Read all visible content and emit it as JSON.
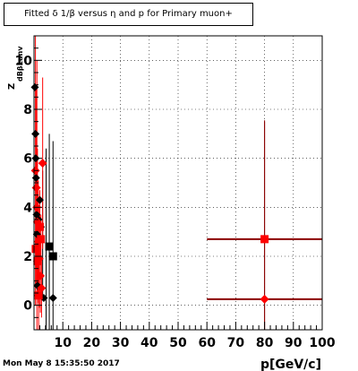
{
  "title": "Fitted δ 1/β versus η and p for Primary muon+",
  "timestamp": "Mon May  8 15:35:50 2017",
  "chart_data": {
    "type": "scatter",
    "xlabel": "p[GeV/c]",
    "ylabel": "Z",
    "ylabel_subscript": "dBβ1anv",
    "xlim": [
      0,
      100
    ],
    "ylim": [
      -1,
      11
    ],
    "xticks": [
      10,
      20,
      30,
      40,
      50,
      60,
      70,
      80,
      90,
      100
    ],
    "yticks": [
      0,
      2,
      4,
      6,
      8,
      10
    ],
    "grid": true,
    "colors": {
      "red": "#ff0000",
      "darkred": "#8b0000",
      "black": "#000000"
    },
    "red_squares": [
      {
        "x": 0.6,
        "y": 2.3,
        "xerr": 0.5,
        "yerr": 0.8
      },
      {
        "x": 1.2,
        "y": 1.8,
        "xerr": 0.6,
        "yerr": 1.2
      },
      {
        "x": 1.6,
        "y": 0.4,
        "xerr": 0.4,
        "yerr": 2.0
      },
      {
        "x": 2.0,
        "y": 3.2,
        "xerr": 0.5,
        "yerr": 1.5
      },
      {
        "x": 2.4,
        "y": 2.7,
        "xerr": 0.6,
        "yerr": 1.0
      },
      {
        "x": 80,
        "y": 2.7,
        "xerr": 20,
        "yerr": 4.8
      }
    ],
    "red_diamonds": [
      {
        "x": 0.5,
        "y": 5.5,
        "xerr": 0.4,
        "yerr": 5.5
      },
      {
        "x": 0.8,
        "y": 4.8,
        "xerr": 0.3,
        "yerr": 4.0
      },
      {
        "x": 1.0,
        "y": 4.0,
        "xerr": 0.4,
        "yerr": 6.0
      },
      {
        "x": 1.2,
        "y": 3.4,
        "xerr": 0.4,
        "yerr": 3.0
      },
      {
        "x": 1.5,
        "y": 2.6,
        "xerr": 0.5,
        "yerr": 2.5
      },
      {
        "x": 1.8,
        "y": 1.9,
        "xerr": 0.5,
        "yerr": 2.0
      },
      {
        "x": 2.2,
        "y": 1.2,
        "xerr": 0.6,
        "yerr": 1.5
      },
      {
        "x": 2.6,
        "y": 0.7,
        "xerr": 0.6,
        "yerr": 1.2
      },
      {
        "x": 3.0,
        "y": 5.8,
        "xerr": 0.5,
        "yerr": 3.5
      },
      {
        "x": 80,
        "y": 0.25,
        "xerr": 20,
        "yerr": 7.3
      }
    ],
    "black_squares": [
      {
        "x": 5.3,
        "y": 2.4,
        "yerr": 4.6
      },
      {
        "x": 6.6,
        "y": 2.0,
        "yerr": 4.5
      }
    ],
    "black_diamonds": [
      {
        "x": 0.3,
        "y": 8.9
      },
      {
        "x": 0.5,
        "y": 7.0
      },
      {
        "x": 0.6,
        "y": 6.0
      },
      {
        "x": 0.7,
        "y": 5.2
      },
      {
        "x": 0.9,
        "y": 3.7
      },
      {
        "x": 1.0,
        "y": 2.9
      },
      {
        "x": 1.1,
        "y": 1.8
      },
      {
        "x": 1.2,
        "y": 0.8
      },
      {
        "x": 1.4,
        "y": 0.4
      },
      {
        "x": 1.6,
        "y": 3.5
      },
      {
        "x": 2.0,
        "y": 4.3
      },
      {
        "x": 2.4,
        "y": 3.2
      },
      {
        "x": 3.4,
        "y": 0.3
      },
      {
        "x": 6.6,
        "y": 0.3
      }
    ],
    "black_verticals": [
      {
        "x": 3.0,
        "y0": 0.3,
        "y1": 5.5
      },
      {
        "x": 4.2,
        "y0": -1.0,
        "y1": 6.4
      },
      {
        "x": 5.3,
        "y0": -1.0,
        "y1": 7.0
      },
      {
        "x": 6.6,
        "y0": -1.0,
        "y1": 6.7
      }
    ]
  }
}
